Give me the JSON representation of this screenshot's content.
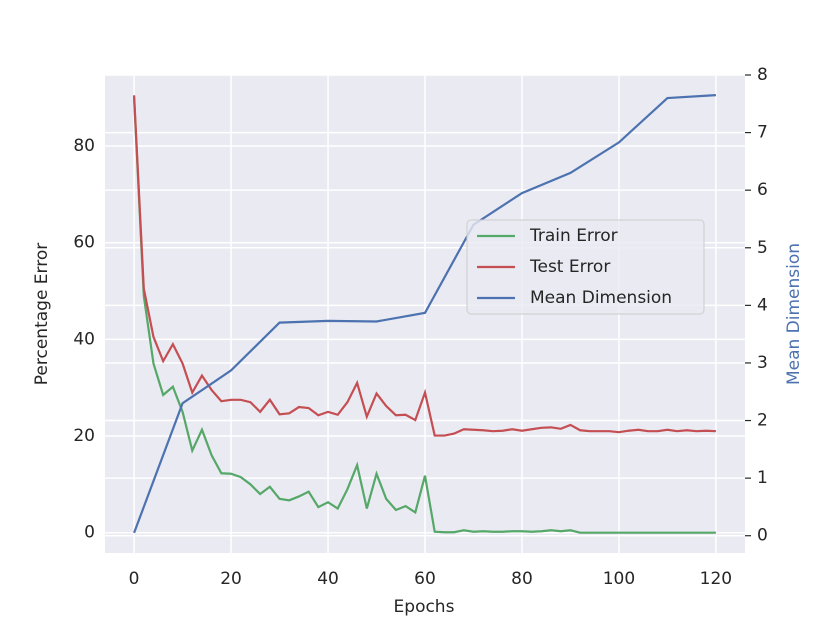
{
  "chart_data": {
    "type": "line",
    "xlabel": "Epochs",
    "ylabel": "Percentage Error",
    "y2label": "Mean Dimension",
    "xlim": [
      -6,
      126
    ],
    "ylim": [
      -4.2,
      94.7
    ],
    "y2lim": [
      -0.3,
      8
    ],
    "xticks": [
      0,
      20,
      40,
      60,
      80,
      100,
      120
    ],
    "yticks": [
      0,
      20,
      40,
      60,
      80
    ],
    "y2ticks": [
      0,
      1,
      2,
      3,
      4,
      5,
      6,
      7,
      8
    ],
    "grid": true,
    "legend": "center right",
    "y2label_color": "#4c72b0",
    "series": [
      {
        "name": "Train Error",
        "color": "#55a868",
        "x": [
          0,
          2,
          4,
          6,
          8,
          10,
          12,
          14,
          16,
          18,
          20,
          22,
          24,
          26,
          28,
          30,
          32,
          34,
          36,
          38,
          40,
          42,
          44,
          46,
          48,
          50,
          52,
          54,
          56,
          58,
          60,
          62,
          64,
          66,
          68,
          70,
          72,
          74,
          76,
          78,
          80,
          82,
          84,
          86,
          88,
          90,
          92,
          94,
          96,
          98,
          100,
          102,
          104,
          106,
          108,
          110,
          112,
          114,
          116,
          118,
          120
        ],
        "values": [
          90,
          49,
          35,
          28.5,
          30.2,
          25,
          17,
          21.3,
          16,
          12.3,
          12.2,
          11.5,
          10,
          8,
          9.5,
          7,
          6.7,
          7.5,
          8.5,
          5.3,
          6.3,
          5,
          9,
          14,
          5,
          12.2,
          7,
          4.7,
          5.5,
          4.2,
          11.8,
          0.2,
          0.1,
          0.1,
          0.5,
          0.2,
          0.3,
          0.2,
          0.2,
          0.3,
          0.3,
          0.2,
          0.3,
          0.5,
          0.3,
          0.5,
          0,
          0,
          0,
          0,
          0,
          0,
          0,
          0,
          0,
          0,
          0,
          0,
          0,
          0,
          0
        ]
      },
      {
        "name": "Test Error",
        "color": "#c44e52",
        "x": [
          0,
          2,
          4,
          6,
          8,
          10,
          12,
          14,
          16,
          18,
          20,
          22,
          24,
          26,
          28,
          30,
          32,
          34,
          36,
          38,
          40,
          42,
          44,
          46,
          48,
          50,
          52,
          54,
          56,
          58,
          60,
          62,
          64,
          66,
          68,
          70,
          72,
          74,
          76,
          78,
          80,
          82,
          84,
          86,
          88,
          90,
          92,
          94,
          96,
          98,
          100,
          102,
          104,
          106,
          108,
          110,
          112,
          114,
          116,
          118,
          120
        ],
        "values": [
          90.5,
          50.5,
          40.5,
          35.5,
          39,
          35,
          29,
          32.5,
          29.5,
          27.2,
          27.5,
          27.5,
          27,
          25,
          27.5,
          24.5,
          24.7,
          26,
          25.8,
          24.3,
          25,
          24.4,
          27,
          31,
          24,
          28.8,
          26.2,
          24.3,
          24.4,
          23.3,
          29,
          20.1,
          20.1,
          20.5,
          21.4,
          21.3,
          21.2,
          21,
          21.1,
          21.4,
          21.1,
          21.4,
          21.7,
          21.8,
          21.5,
          22.3,
          21.2,
          21,
          21,
          21,
          20.8,
          21.1,
          21.3,
          21,
          21,
          21.3,
          21,
          21.2,
          21,
          21.1,
          21
        ]
      },
      {
        "name": "Mean Dimension",
        "color": "#4c72b0",
        "axis": "y2",
        "x": [
          0,
          10,
          20,
          30,
          40,
          50,
          60,
          70,
          80,
          90,
          100,
          110,
          120
        ],
        "values": [
          0.05,
          2.3,
          2.87,
          3.7,
          3.73,
          3.72,
          3.87,
          5.4,
          5.95,
          6.3,
          6.83,
          7.6,
          7.65
        ]
      }
    ]
  }
}
